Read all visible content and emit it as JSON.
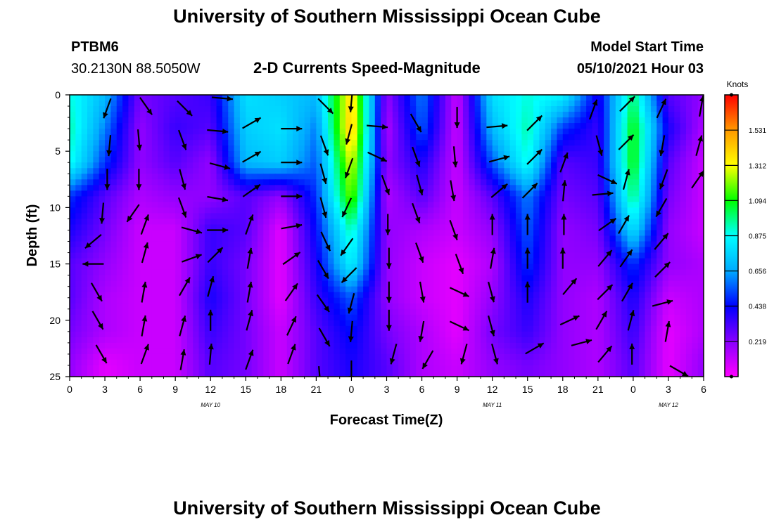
{
  "page": {
    "title_top": "University of Southern Mississippi Ocean Cube",
    "title_bottom": "University of Southern Mississippi Ocean Cube",
    "station_id": "PTBM6",
    "station_coords": "30.2130N  88.5050W",
    "plot_title": "2-D Currents Speed-Magnitude",
    "model_start_label": "Model Start Time",
    "model_start_value": "05/10/2021 Hour 03"
  },
  "chart_data": {
    "type": "heatmap",
    "title": "2-D Currents Speed-Magnitude",
    "xlabel": "Forecast Time(Z)",
    "ylabel": "Depth (ft)",
    "x_range_hours": [
      0,
      54
    ],
    "y_range_ft": [
      0,
      25
    ],
    "x_ticks": [
      {
        "h": 0,
        "label": "0"
      },
      {
        "h": 3,
        "label": "3"
      },
      {
        "h": 6,
        "label": "6"
      },
      {
        "h": 9,
        "label": "9"
      },
      {
        "h": 12,
        "label": "12"
      },
      {
        "h": 15,
        "label": "15"
      },
      {
        "h": 18,
        "label": "18"
      },
      {
        "h": 21,
        "label": "21"
      },
      {
        "h": 24,
        "label": "0"
      },
      {
        "h": 27,
        "label": "3"
      },
      {
        "h": 30,
        "label": "6"
      },
      {
        "h": 33,
        "label": "9"
      },
      {
        "h": 36,
        "label": "12"
      },
      {
        "h": 39,
        "label": "15"
      },
      {
        "h": 42,
        "label": "18"
      },
      {
        "h": 45,
        "label": "21"
      },
      {
        "h": 48,
        "label": "0"
      },
      {
        "h": 51,
        "label": "3"
      },
      {
        "h": 54,
        "label": "6"
      }
    ],
    "y_ticks": [
      {
        "d": 0,
        "label": "0"
      },
      {
        "d": 5,
        "label": "5"
      },
      {
        "d": 10,
        "label": "10"
      },
      {
        "d": 15,
        "label": "15"
      },
      {
        "d": 20,
        "label": "20"
      },
      {
        "d": 25,
        "label": "25"
      }
    ],
    "date_labels": [
      {
        "h": 12,
        "label": "MAY 10"
      },
      {
        "h": 36,
        "label": "MAY 11"
      },
      {
        "h": 51,
        "label": "MAY 12"
      }
    ],
    "colorbar": {
      "units": "Knots",
      "range": [
        0,
        1.75
      ],
      "ticks": [
        {
          "v": 0.219,
          "label": "0.219"
        },
        {
          "v": 0.438,
          "label": "0.438"
        },
        {
          "v": 0.656,
          "label": "0.656"
        },
        {
          "v": 0.875,
          "label": "0.875"
        },
        {
          "v": 1.094,
          "label": "1.094"
        },
        {
          "v": 1.312,
          "label": "1.312"
        },
        {
          "v": 1.531,
          "label": "1.531"
        }
      ],
      "colors": [
        "#ff00ff",
        "#8800ff",
        "#0000ff",
        "#00aaff",
        "#00ffff",
        "#00ff00",
        "#ffff00",
        "#ff9900",
        "#ff0000"
      ]
    },
    "speed_field": {
      "hours": [
        0,
        3,
        6,
        9,
        12,
        15,
        18,
        21,
        24,
        27,
        30,
        33,
        36,
        39,
        42,
        45,
        48,
        51,
        54
      ],
      "depths_ft": [
        0,
        3,
        6,
        9,
        12,
        15,
        18,
        21,
        24
      ],
      "values_knots": [
        [
          0.9,
          0.7,
          0.25,
          0.3,
          0.35,
          0.8,
          0.75,
          0.7,
          1.4,
          0.2,
          0.6,
          0.1,
          0.8,
          0.9,
          0.85,
          0.4,
          1.0,
          0.3,
          0.2
        ],
        [
          0.95,
          0.6,
          0.2,
          0.35,
          0.3,
          0.75,
          0.8,
          0.6,
          1.45,
          0.15,
          0.55,
          0.1,
          0.7,
          0.95,
          0.5,
          0.35,
          1.1,
          0.4,
          0.15
        ],
        [
          0.9,
          0.5,
          0.2,
          0.3,
          0.2,
          0.7,
          0.75,
          0.55,
          1.3,
          0.2,
          0.4,
          0.1,
          0.55,
          0.9,
          0.3,
          0.35,
          1.1,
          0.3,
          0.1
        ],
        [
          0.5,
          0.3,
          0.15,
          0.2,
          0.2,
          0.3,
          0.2,
          0.5,
          1.2,
          0.15,
          0.3,
          0.1,
          0.3,
          0.6,
          0.25,
          0.3,
          1.0,
          0.25,
          0.1
        ],
        [
          0.4,
          0.25,
          0.1,
          0.1,
          0.35,
          0.3,
          0.05,
          0.45,
          0.95,
          0.2,
          0.15,
          0.1,
          0.2,
          0.55,
          0.2,
          0.25,
          0.8,
          0.2,
          0.1
        ],
        [
          0.3,
          0.2,
          0.1,
          0.1,
          0.35,
          0.25,
          0.05,
          0.4,
          0.85,
          0.2,
          0.1,
          0.05,
          0.15,
          0.5,
          0.2,
          0.2,
          0.5,
          0.2,
          0.15
        ],
        [
          0.3,
          0.15,
          0.1,
          0.1,
          0.4,
          0.25,
          0.05,
          0.35,
          0.55,
          0.2,
          0.1,
          0.05,
          0.2,
          0.4,
          0.2,
          0.15,
          0.4,
          0.1,
          0.15
        ],
        [
          0.25,
          0.15,
          0.1,
          0.1,
          0.35,
          0.25,
          0.1,
          0.3,
          0.45,
          0.25,
          0.15,
          0.05,
          0.25,
          0.35,
          0.2,
          0.15,
          0.35,
          0.05,
          0.15
        ],
        [
          0.2,
          0.05,
          0.1,
          0.1,
          0.3,
          0.25,
          0.1,
          0.3,
          0.4,
          0.3,
          0.15,
          0.1,
          0.2,
          0.25,
          0.2,
          0.15,
          0.3,
          0.05,
          0.2
        ]
      ]
    },
    "vectors": [
      {
        "h": 3.2,
        "d": 1.2,
        "dir": 200
      },
      {
        "h": 3.4,
        "d": 4.5,
        "dir": 185
      },
      {
        "h": 3.2,
        "d": 7.5,
        "dir": 180
      },
      {
        "h": 2.8,
        "d": 10.5,
        "dir": 185
      },
      {
        "h": 2.0,
        "d": 13.0,
        "dir": 230
      },
      {
        "h": 2.0,
        "d": 15.0,
        "dir": 270
      },
      {
        "h": 2.3,
        "d": 17.5,
        "dir": 150
      },
      {
        "h": 2.4,
        "d": 20.0,
        "dir": 150
      },
      {
        "h": 2.7,
        "d": 23.0,
        "dir": 150
      },
      {
        "h": 6.5,
        "d": 1.0,
        "dir": 145
      },
      {
        "h": 5.9,
        "d": 4.0,
        "dir": 175
      },
      {
        "h": 5.9,
        "d": 7.5,
        "dir": 180
      },
      {
        "h": 5.4,
        "d": 10.5,
        "dir": 215
      },
      {
        "h": 6.4,
        "d": 11.5,
        "dir": 20
      },
      {
        "h": 6.4,
        "d": 14.0,
        "dir": 15
      },
      {
        "h": 6.3,
        "d": 17.5,
        "dir": 10
      },
      {
        "h": 6.3,
        "d": 20.5,
        "dir": 10
      },
      {
        "h": 6.4,
        "d": 23.0,
        "dir": 20
      },
      {
        "h": 9.8,
        "d": 1.2,
        "dir": 135
      },
      {
        "h": 9.6,
        "d": 4.0,
        "dir": 160
      },
      {
        "h": 9.6,
        "d": 7.5,
        "dir": 165
      },
      {
        "h": 9.6,
        "d": 10.0,
        "dir": 160
      },
      {
        "h": 10.4,
        "d": 12.0,
        "dir": 105
      },
      {
        "h": 10.4,
        "d": 14.5,
        "dir": 70
      },
      {
        "h": 9.8,
        "d": 17.0,
        "dir": 30
      },
      {
        "h": 9.6,
        "d": 20.5,
        "dir": 15
      },
      {
        "h": 9.6,
        "d": 23.5,
        "dir": 10
      },
      {
        "h": 13.0,
        "d": 0.3,
        "dir": 95
      },
      {
        "h": 12.6,
        "d": 3.2,
        "dir": 95
      },
      {
        "h": 12.8,
        "d": 6.3,
        "dir": 105
      },
      {
        "h": 12.6,
        "d": 9.2,
        "dir": 100
      },
      {
        "h": 12.6,
        "d": 12.0,
        "dir": 90
      },
      {
        "h": 12.4,
        "d": 14.2,
        "dir": 45
      },
      {
        "h": 12.0,
        "d": 17.0,
        "dir": 15
      },
      {
        "h": 12.0,
        "d": 20.0,
        "dir": 0
      },
      {
        "h": 12.0,
        "d": 23.0,
        "dir": 5
      },
      {
        "h": 15.5,
        "d": 2.5,
        "dir": 60
      },
      {
        "h": 15.5,
        "d": 5.5,
        "dir": 60
      },
      {
        "h": 15.5,
        "d": 8.5,
        "dir": 55
      },
      {
        "h": 15.3,
        "d": 11.5,
        "dir": 20
      },
      {
        "h": 15.3,
        "d": 14.5,
        "dir": 10
      },
      {
        "h": 15.3,
        "d": 17.5,
        "dir": 10
      },
      {
        "h": 15.3,
        "d": 20.0,
        "dir": 15
      },
      {
        "h": 15.3,
        "d": 23.5,
        "dir": 20
      },
      {
        "h": 18.9,
        "d": 3.0,
        "dir": 90
      },
      {
        "h": 18.9,
        "d": 6.0,
        "dir": 90
      },
      {
        "h": 18.9,
        "d": 9.0,
        "dir": 90
      },
      {
        "h": 18.9,
        "d": 11.7,
        "dir": 80
      },
      {
        "h": 18.9,
        "d": 14.5,
        "dir": 55
      },
      {
        "h": 18.9,
        "d": 17.5,
        "dir": 35
      },
      {
        "h": 18.9,
        "d": 20.5,
        "dir": 25
      },
      {
        "h": 18.9,
        "d": 23.0,
        "dir": 20
      },
      {
        "h": 21.8,
        "d": 1.0,
        "dir": 135
      },
      {
        "h": 21.7,
        "d": 4.5,
        "dir": 160
      },
      {
        "h": 21.6,
        "d": 7.0,
        "dir": 165
      },
      {
        "h": 21.6,
        "d": 10.0,
        "dir": 165
      },
      {
        "h": 21.8,
        "d": 13.0,
        "dir": 155
      },
      {
        "h": 21.6,
        "d": 15.5,
        "dir": 150
      },
      {
        "h": 21.6,
        "d": 18.5,
        "dir": 145
      },
      {
        "h": 21.7,
        "d": 21.5,
        "dir": 150
      },
      {
        "h": 21.3,
        "d": 25.0,
        "dir": 175
      },
      {
        "h": 24.0,
        "d": 0.6,
        "dir": 185
      },
      {
        "h": 23.8,
        "d": 3.5,
        "dir": 195
      },
      {
        "h": 23.8,
        "d": 6.5,
        "dir": 200
      },
      {
        "h": 23.6,
        "d": 10.0,
        "dir": 205
      },
      {
        "h": 23.6,
        "d": 13.5,
        "dir": 215
      },
      {
        "h": 23.8,
        "d": 16.0,
        "dir": 225
      },
      {
        "h": 24.0,
        "d": 18.5,
        "dir": 195
      },
      {
        "h": 24.0,
        "d": 21.0,
        "dir": 185
      },
      {
        "h": 24.0,
        "d": 24.5,
        "dir": 180
      },
      {
        "h": 26.2,
        "d": 2.8,
        "dir": 95
      },
      {
        "h": 26.2,
        "d": 5.5,
        "dir": 115
      },
      {
        "h": 26.9,
        "d": 8.0,
        "dir": 160
      },
      {
        "h": 27.1,
        "d": 11.5,
        "dir": 180
      },
      {
        "h": 27.2,
        "d": 14.5,
        "dir": 180
      },
      {
        "h": 27.2,
        "d": 17.5,
        "dir": 180
      },
      {
        "h": 27.2,
        "d": 20.0,
        "dir": 180
      },
      {
        "h": 27.6,
        "d": 23.0,
        "dir": 195
      },
      {
        "h": 29.5,
        "d": 2.5,
        "dir": 150
      },
      {
        "h": 29.5,
        "d": 5.5,
        "dir": 160
      },
      {
        "h": 29.8,
        "d": 8.0,
        "dir": 165
      },
      {
        "h": 29.5,
        "d": 10.5,
        "dir": 160
      },
      {
        "h": 29.8,
        "d": 14.0,
        "dir": 160
      },
      {
        "h": 30.0,
        "d": 17.5,
        "dir": 170
      },
      {
        "h": 30.0,
        "d": 21.0,
        "dir": 190
      },
      {
        "h": 30.5,
        "d": 23.5,
        "dir": 210
      },
      {
        "h": 33.0,
        "d": 2.0,
        "dir": 180
      },
      {
        "h": 32.8,
        "d": 5.5,
        "dir": 175
      },
      {
        "h": 32.6,
        "d": 8.5,
        "dir": 170
      },
      {
        "h": 32.7,
        "d": 12.0,
        "dir": 160
      },
      {
        "h": 33.2,
        "d": 15.0,
        "dir": 160
      },
      {
        "h": 33.2,
        "d": 17.5,
        "dir": 115
      },
      {
        "h": 33.2,
        "d": 20.5,
        "dir": 115
      },
      {
        "h": 33.6,
        "d": 23.0,
        "dir": 195
      },
      {
        "h": 36.4,
        "d": 2.8,
        "dir": 85
      },
      {
        "h": 36.6,
        "d": 5.7,
        "dir": 75
      },
      {
        "h": 36.6,
        "d": 8.5,
        "dir": 50
      },
      {
        "h": 36.0,
        "d": 11.5,
        "dir": 0
      },
      {
        "h": 36.0,
        "d": 14.5,
        "dir": 10
      },
      {
        "h": 35.9,
        "d": 17.5,
        "dir": 165
      },
      {
        "h": 35.9,
        "d": 20.5,
        "dir": 165
      },
      {
        "h": 36.2,
        "d": 23.0,
        "dir": 165
      },
      {
        "h": 39.6,
        "d": 2.5,
        "dir": 45
      },
      {
        "h": 39.6,
        "d": 5.5,
        "dir": 45
      },
      {
        "h": 39.2,
        "d": 8.5,
        "dir": 45
      },
      {
        "h": 39.0,
        "d": 11.5,
        "dir": 0
      },
      {
        "h": 39.0,
        "d": 14.5,
        "dir": 0
      },
      {
        "h": 39.0,
        "d": 17.5,
        "dir": 0
      },
      {
        "h": 39.6,
        "d": 22.5,
        "dir": 60
      },
      {
        "h": 42.1,
        "d": 6.0,
        "dir": 20
      },
      {
        "h": 42.1,
        "d": 8.5,
        "dir": 5
      },
      {
        "h": 42.1,
        "d": 11.5,
        "dir": 0
      },
      {
        "h": 42.0,
        "d": 14.5,
        "dir": 0
      },
      {
        "h": 42.6,
        "d": 17.0,
        "dir": 40
      },
      {
        "h": 42.6,
        "d": 20.0,
        "dir": 65
      },
      {
        "h": 43.6,
        "d": 22.0,
        "dir": 75
      },
      {
        "h": 44.6,
        "d": 1.3,
        "dir": 20
      },
      {
        "h": 45.1,
        "d": 4.5,
        "dir": 165
      },
      {
        "h": 45.8,
        "d": 7.5,
        "dir": 115
      },
      {
        "h": 45.4,
        "d": 8.8,
        "dir": 85
      },
      {
        "h": 45.8,
        "d": 11.5,
        "dir": 55
      },
      {
        "h": 45.6,
        "d": 14.5,
        "dir": 40
      },
      {
        "h": 45.6,
        "d": 17.5,
        "dir": 45
      },
      {
        "h": 45.3,
        "d": 20.0,
        "dir": 30
      },
      {
        "h": 45.6,
        "d": 23.0,
        "dir": 40
      },
      {
        "h": 47.5,
        "d": 0.8,
        "dir": 45
      },
      {
        "h": 47.4,
        "d": 4.2,
        "dir": 45
      },
      {
        "h": 47.4,
        "d": 7.5,
        "dir": 15
      },
      {
        "h": 47.2,
        "d": 11.5,
        "dir": 30
      },
      {
        "h": 47.4,
        "d": 14.5,
        "dir": 35
      },
      {
        "h": 47.5,
        "d": 17.5,
        "dir": 30
      },
      {
        "h": 47.8,
        "d": 20.0,
        "dir": 15
      },
      {
        "h": 47.9,
        "d": 23.0,
        "dir": 0
      },
      {
        "h": 50.4,
        "d": 1.2,
        "dir": 25
      },
      {
        "h": 50.5,
        "d": 4.5,
        "dir": 190
      },
      {
        "h": 50.6,
        "d": 7.5,
        "dir": 200
      },
      {
        "h": 50.4,
        "d": 10.0,
        "dir": 210
      },
      {
        "h": 50.4,
        "d": 13.0,
        "dir": 40
      },
      {
        "h": 50.5,
        "d": 15.5,
        "dir": 45
      },
      {
        "h": 50.5,
        "d": 18.5,
        "dir": 75
      },
      {
        "h": 50.9,
        "d": 21.0,
        "dir": 10
      },
      {
        "h": 51.9,
        "d": 24.5,
        "dir": 120
      },
      {
        "h": 53.8,
        "d": 1.0,
        "dir": 10
      },
      {
        "h": 53.6,
        "d": 4.5,
        "dir": 15
      },
      {
        "h": 53.5,
        "d": 7.5,
        "dir": 35
      }
    ]
  }
}
